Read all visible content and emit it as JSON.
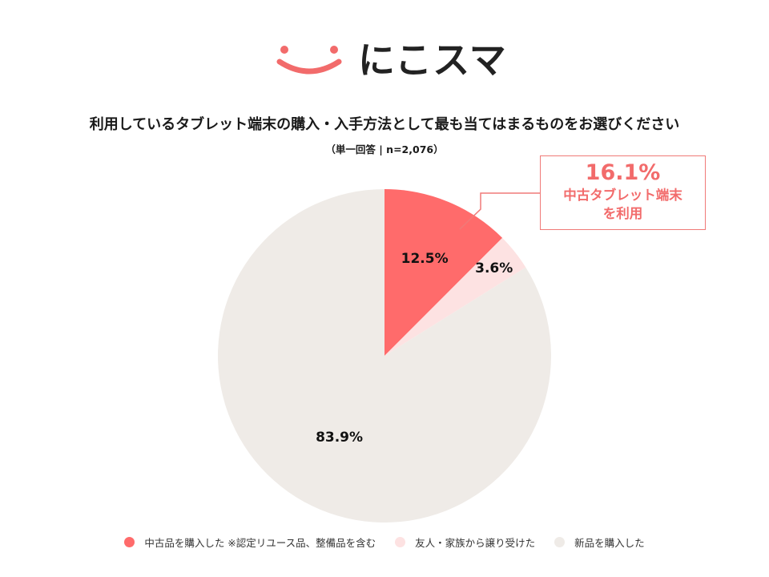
{
  "brand": {
    "name": "にこスマ",
    "color": "#f26b6b",
    "icon": "smile-icon"
  },
  "chart_data": {
    "type": "pie",
    "title": "利用しているタブレット端末の購入・入手方法として最も当てはまるものをお選びください",
    "subtitle": "（単一回答 | n=2,076）",
    "start_angle_deg": 0,
    "direction": "clockwise",
    "legend_position": "bottom",
    "slices": [
      {
        "label": "中古品を購入した ※認定リユース品、整備品を含む",
        "value": 12.5,
        "value_label": "12.5%",
        "color": "#ff6b6b"
      },
      {
        "label": "友人・家族から譲り受けた",
        "value": 3.6,
        "value_label": "3.6%",
        "color": "#fde2e2"
      },
      {
        "label": "新品を購入した",
        "value": 83.9,
        "value_label": "83.9%",
        "color": "#efebe7"
      }
    ],
    "annotation": {
      "value": "16.1%",
      "line1": "中古タブレット端末",
      "line2": "を利用",
      "color": "#f26b6b"
    }
  }
}
